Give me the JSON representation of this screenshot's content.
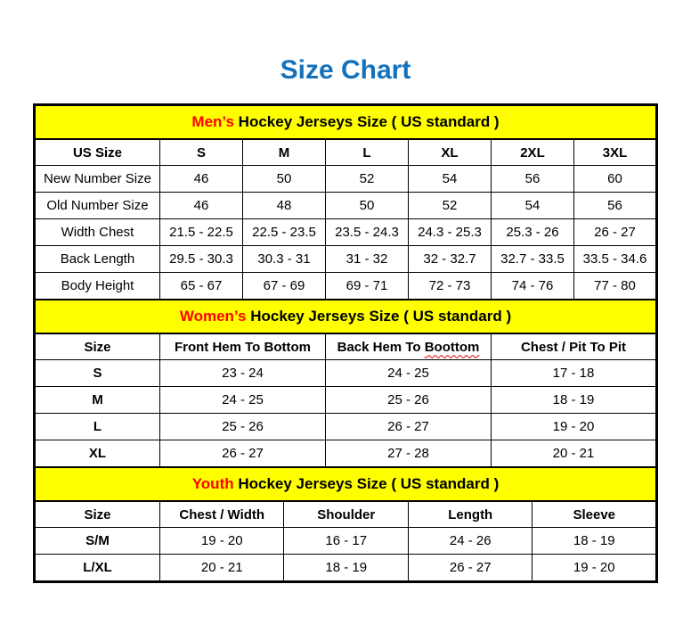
{
  "page": {
    "title": "Size Chart"
  },
  "colors": {
    "title_blue": "#1472BD",
    "band_yellow": "#FFFF00",
    "accent_red": "#FF0000",
    "border_black": "#000000",
    "squiggle_red": "#D00000"
  },
  "tables": [
    {
      "id": "mens",
      "band": {
        "highlight": "Men’s",
        "rest": " Hockey Jerseys Size ( US standard )"
      },
      "headers": [
        "US Size",
        "S",
        "M",
        "L",
        "XL",
        "2XL",
        "3XL"
      ],
      "rows": [
        {
          "label": "New Number Size",
          "values": [
            "46",
            "50",
            "52",
            "54",
            "56",
            "60"
          ]
        },
        {
          "label": "Old Number Size",
          "values": [
            "46",
            "48",
            "50",
            "52",
            "54",
            "56"
          ]
        },
        {
          "label": "Width Chest",
          "values": [
            "21.5 - 22.5",
            "22.5 - 23.5",
            "23.5 - 24.3",
            "24.3 - 25.3",
            "25.3 - 26",
            "26 - 27"
          ]
        },
        {
          "label": "Back Length",
          "values": [
            "29.5 - 30.3",
            "30.3 - 31",
            "31 - 32",
            "32 - 32.7",
            "32.7 - 33.5",
            "33.5 - 34.6"
          ]
        },
        {
          "label": "Body Height",
          "values": [
            "65 - 67",
            "67 - 69",
            "69 - 71",
            "72 - 73",
            "74 - 76",
            "77 - 80"
          ]
        }
      ]
    },
    {
      "id": "womens",
      "band": {
        "highlight": "Women’s",
        "rest": " Hockey Jerseys Size ( US standard )"
      },
      "headers": [
        "Size",
        "Front Hem To Bottom",
        "Back Hem To Boottom",
        "Chest / Pit To Pit"
      ],
      "misspell": {
        "index": 2,
        "prefix": "Back Hem To ",
        "word": "Boottom"
      },
      "rows": [
        {
          "label": "S",
          "values": [
            "23 - 24",
            "24 - 25",
            "17 - 18"
          ]
        },
        {
          "label": "M",
          "values": [
            "24 - 25",
            "25 - 26",
            "18 - 19"
          ]
        },
        {
          "label": "L",
          "values": [
            "25 - 26",
            "26 - 27",
            "19 - 20"
          ]
        },
        {
          "label": "XL",
          "values": [
            "26 - 27",
            "27 - 28",
            "20 - 21"
          ]
        }
      ]
    },
    {
      "id": "youth",
      "band": {
        "highlight": "Youth",
        "rest": " Hockey Jerseys Size ( US standard )"
      },
      "headers": [
        "Size",
        "Chest / Width",
        "Shoulder",
        "Length",
        "Sleeve"
      ],
      "rows": [
        {
          "label": "S/M",
          "values": [
            "19 - 20",
            "16 - 17",
            "24 - 26",
            "18 - 19"
          ]
        },
        {
          "label": "L/XL",
          "values": [
            "20 - 21",
            "18 - 19",
            "26 - 27",
            "19 - 20"
          ]
        }
      ]
    }
  ]
}
